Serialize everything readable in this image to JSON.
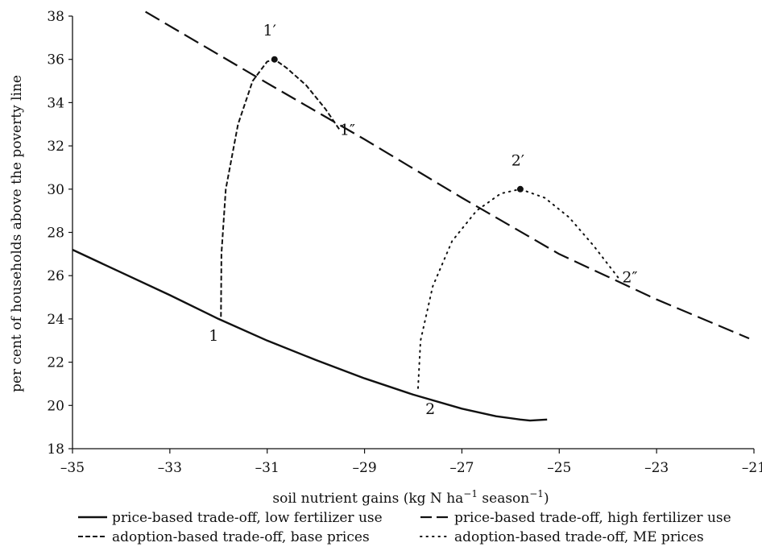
{
  "chart_data": {
    "type": "line",
    "title": "",
    "xlabel": "soil nutrient gains (kg N ha",
    "xlabel_sup1": "−1",
    "xlabel_mid": " season",
    "xlabel_sup2": "−1",
    "xlabel_end": ")",
    "ylabel": "per cent of households above the poverty line",
    "xlim": [
      -35,
      -21
    ],
    "ylim": [
      18,
      38
    ],
    "x_ticks": [
      -35,
      -33,
      -31,
      -29,
      -27,
      -25,
      -23,
      -21
    ],
    "x_tick_labels": [
      "–35",
      "–33",
      "–31",
      "–29",
      "–27",
      "–25",
      "–23",
      "–21"
    ],
    "y_ticks": [
      18,
      20,
      22,
      24,
      26,
      28,
      30,
      32,
      34,
      36,
      38
    ],
    "y_tick_labels": [
      "18",
      "20",
      "22",
      "24",
      "26",
      "28",
      "30",
      "32",
      "34",
      "36",
      "38"
    ],
    "grid": false,
    "legend_position": "bottom",
    "series": [
      {
        "name": "price-based trade-off, low fertilizer use",
        "style": "solid",
        "points": [
          [
            -35,
            27.2
          ],
          [
            -34,
            26.15
          ],
          [
            -33,
            25.1
          ],
          [
            -32,
            24.0
          ],
          [
            -31,
            23.0
          ],
          [
            -30,
            22.1
          ],
          [
            -29,
            21.25
          ],
          [
            -28,
            20.5
          ],
          [
            -27,
            19.85
          ],
          [
            -26.3,
            19.5
          ],
          [
            -25.8,
            19.35
          ],
          [
            -25.6,
            19.3
          ],
          [
            -25.25,
            19.35
          ]
        ]
      },
      {
        "name": "price-based trade-off, high fertilizer use",
        "style": "long-dash",
        "points": [
          [
            -33.5,
            38.2
          ],
          [
            -31,
            34.9
          ],
          [
            -29,
            32.3
          ],
          [
            -27,
            29.6
          ],
          [
            -25,
            27.0
          ],
          [
            -23,
            24.9
          ],
          [
            -21.1,
            23.1
          ]
        ]
      },
      {
        "name": "adoption-based trade-off, base prices",
        "style": "short-dash",
        "points": [
          [
            -31.95,
            24.1
          ],
          [
            -31.94,
            27.0
          ],
          [
            -31.85,
            30.0
          ],
          [
            -31.6,
            33.0
          ],
          [
            -31.3,
            35.0
          ],
          [
            -31.0,
            35.9
          ],
          [
            -30.85,
            36.0
          ],
          [
            -30.6,
            35.6
          ],
          [
            -30.2,
            34.8
          ],
          [
            -29.8,
            33.7
          ],
          [
            -29.5,
            32.7
          ]
        ]
      },
      {
        "name": "adoption-based trade-off, ME prices",
        "style": "dotted",
        "points": [
          [
            -27.9,
            20.8
          ],
          [
            -27.85,
            23.0
          ],
          [
            -27.6,
            25.5
          ],
          [
            -27.2,
            27.6
          ],
          [
            -26.7,
            29.0
          ],
          [
            -26.2,
            29.8
          ],
          [
            -25.8,
            30.0
          ],
          [
            -25.3,
            29.6
          ],
          [
            -24.8,
            28.7
          ],
          [
            -24.3,
            27.4
          ],
          [
            -23.75,
            25.8
          ]
        ]
      }
    ],
    "markers": [
      [
        -30.85,
        36.0
      ],
      [
        -25.8,
        30.0
      ]
    ],
    "annotations": [
      {
        "text": "1",
        "x": -32.1,
        "y": 23.0
      },
      {
        "text": "2",
        "x": -27.65,
        "y": 19.6
      },
      {
        "text": "1′",
        "x": -30.95,
        "y": 37.1
      },
      {
        "text": "2′",
        "x": -25.85,
        "y": 31.1
      },
      {
        "text": "1″",
        "x": -29.35,
        "y": 32.5
      },
      {
        "text": "2″",
        "x": -23.55,
        "y": 25.7
      }
    ]
  }
}
